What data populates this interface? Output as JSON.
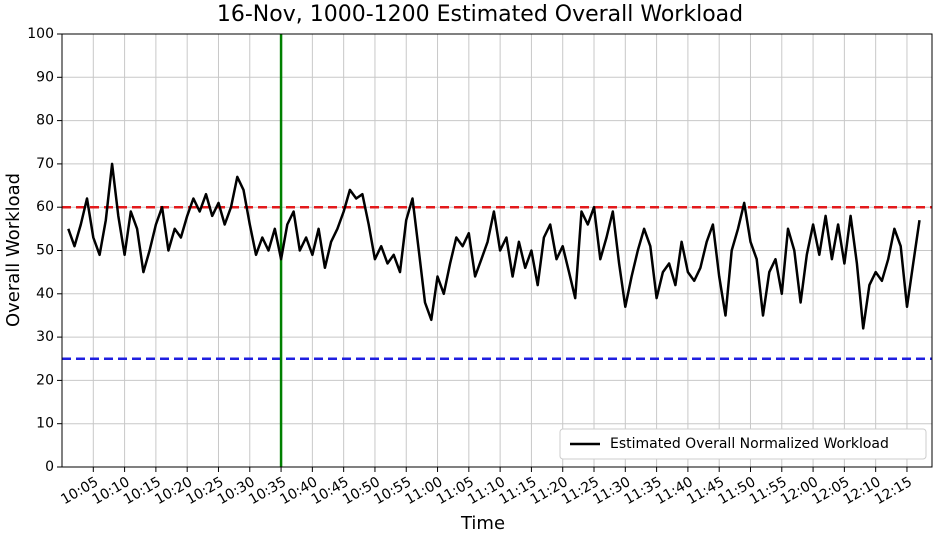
{
  "chart_data": {
    "type": "line",
    "title": "16-Nov, 1000-1200 Estimated Overall Workload",
    "xlabel": "Time",
    "ylabel": "Overall Workload",
    "x": [
      "10:01",
      "10:02",
      "10:03",
      "10:04",
      "10:05",
      "10:06",
      "10:07",
      "10:08",
      "10:09",
      "10:10",
      "10:11",
      "10:12",
      "10:13",
      "10:14",
      "10:15",
      "10:16",
      "10:17",
      "10:18",
      "10:19",
      "10:20",
      "10:21",
      "10:22",
      "10:23",
      "10:24",
      "10:25",
      "10:26",
      "10:27",
      "10:28",
      "10:29",
      "10:30",
      "10:31",
      "10:32",
      "10:33",
      "10:34",
      "10:35",
      "10:36",
      "10:37",
      "10:38",
      "10:39",
      "10:40",
      "10:41",
      "10:42",
      "10:43",
      "10:44",
      "10:45",
      "10:46",
      "10:47",
      "10:48",
      "10:49",
      "10:50",
      "10:51",
      "10:52",
      "10:53",
      "10:54",
      "10:55",
      "10:56",
      "10:57",
      "10:58",
      "10:59",
      "11:00",
      "11:01",
      "11:02",
      "11:03",
      "11:04",
      "11:05",
      "11:06",
      "11:07",
      "11:08",
      "11:09",
      "11:10",
      "11:11",
      "11:12",
      "11:13",
      "11:14",
      "11:15",
      "11:16",
      "11:17",
      "11:18",
      "11:19",
      "11:20",
      "11:21",
      "11:22",
      "11:23",
      "11:24",
      "11:25",
      "11:26",
      "11:27",
      "11:28",
      "11:29",
      "11:30",
      "11:31",
      "11:32",
      "11:33",
      "11:34",
      "11:35",
      "11:36",
      "11:37",
      "11:38",
      "11:39",
      "11:40",
      "11:41",
      "11:42",
      "11:43",
      "11:44",
      "11:45",
      "11:46",
      "11:47",
      "11:48",
      "11:49",
      "11:50",
      "11:51",
      "11:52",
      "11:53",
      "11:54",
      "11:55",
      "11:56",
      "11:57",
      "11:58",
      "11:59",
      "12:00",
      "12:01",
      "12:02",
      "12:03",
      "12:04",
      "12:05",
      "12:06",
      "12:07",
      "12:08",
      "12:09",
      "12:10",
      "12:11",
      "12:12",
      "12:13",
      "12:14",
      "12:15",
      "12:16",
      "12:17"
    ],
    "series": [
      {
        "name": "Estimated Overall Normalized Workload",
        "color": "#000000",
        "values": [
          55,
          51,
          56,
          62,
          53,
          49,
          57,
          70,
          58,
          49,
          59,
          55,
          45,
          50,
          56,
          60,
          50,
          55,
          53,
          58,
          62,
          59,
          63,
          58,
          61,
          56,
          60,
          67,
          64,
          56,
          49,
          53,
          50,
          55,
          48,
          56,
          59,
          50,
          53,
          49,
          55,
          46,
          52,
          55,
          59,
          64,
          62,
          63,
          56,
          48,
          51,
          47,
          49,
          45,
          57,
          62,
          50,
          38,
          34,
          44,
          40,
          47,
          53,
          51,
          54,
          44,
          48,
          52,
          59,
          50,
          53,
          44,
          52,
          46,
          50,
          42,
          53,
          56,
          48,
          51,
          45,
          39,
          59,
          56,
          60,
          48,
          53,
          59,
          47,
          37,
          44,
          50,
          55,
          51,
          39,
          45,
          47,
          42,
          52,
          45,
          43,
          46,
          52,
          56,
          44,
          35,
          50,
          55,
          61,
          52,
          48,
          35,
          45,
          48,
          40,
          55,
          50,
          38,
          49,
          56,
          49,
          58,
          48,
          56,
          47,
          58,
          47,
          32,
          42,
          45,
          43,
          48,
          55,
          51,
          37,
          47,
          57
        ]
      }
    ],
    "hlines": [
      {
        "value": 60,
        "color": "#e31a1c"
      },
      {
        "value": 25,
        "color": "#1f1fe0"
      }
    ],
    "vlines": [
      {
        "x": "10:35",
        "color": "#008000"
      }
    ],
    "xlim": [
      "10:00",
      "12:19"
    ],
    "xticks": [
      "10:05",
      "10:10",
      "10:15",
      "10:20",
      "10:25",
      "10:30",
      "10:35",
      "10:40",
      "10:45",
      "10:50",
      "10:55",
      "11:00",
      "11:05",
      "11:10",
      "11:15",
      "11:20",
      "11:25",
      "11:30",
      "11:35",
      "11:40",
      "11:45",
      "11:50",
      "11:55",
      "12:00",
      "12:05",
      "12:10",
      "12:15"
    ],
    "ylim": [
      0,
      100
    ],
    "yticks": [
      0,
      10,
      20,
      30,
      40,
      50,
      60,
      70,
      80,
      90,
      100
    ],
    "grid": true,
    "legend": "lower right"
  }
}
